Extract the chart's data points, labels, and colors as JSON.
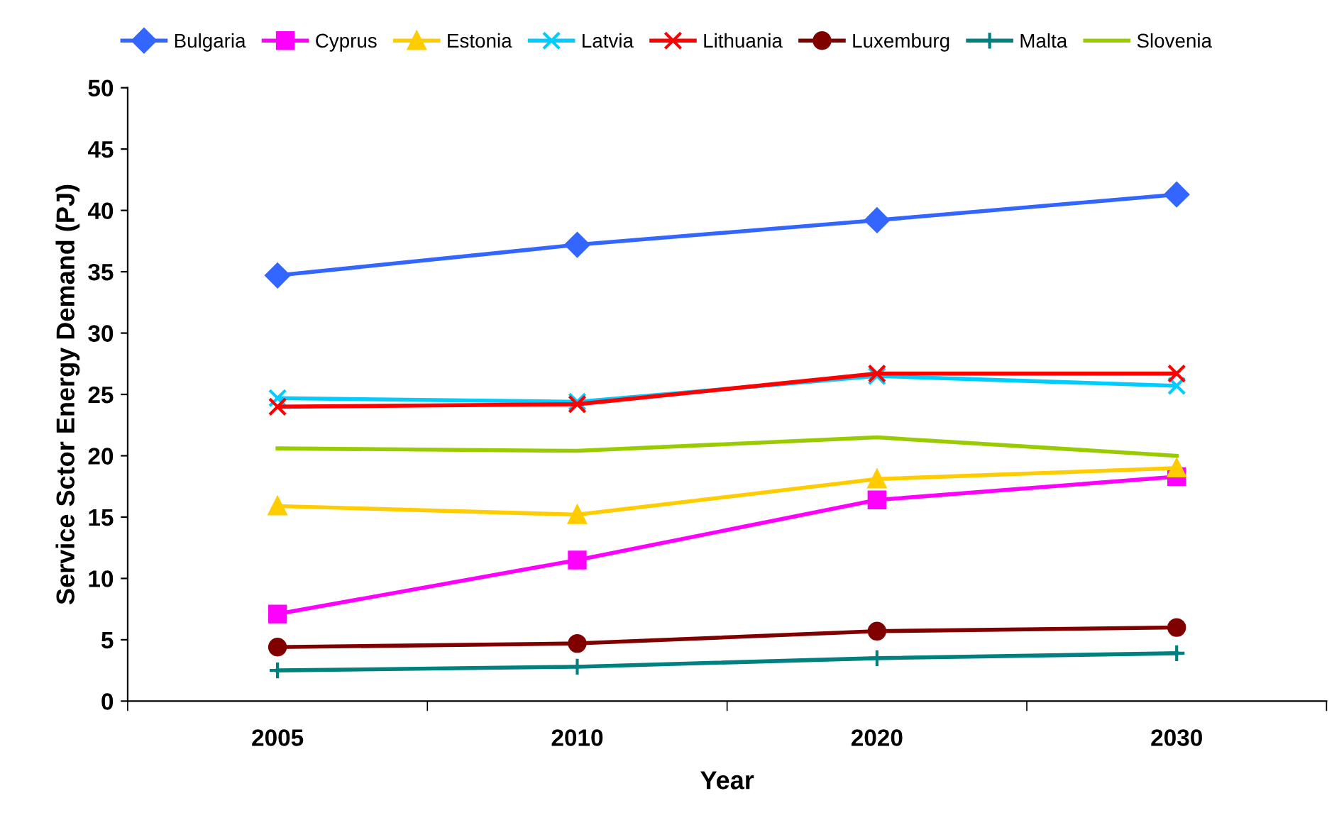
{
  "chart_data": {
    "type": "line",
    "xlabel": "Year",
    "ylabel": "Service Sctor Energy Demand (PJ)",
    "categories": [
      "2005",
      "2010",
      "2020",
      "2030"
    ],
    "ylim": [
      0,
      50
    ],
    "yticks": [
      0,
      5,
      10,
      15,
      20,
      25,
      30,
      35,
      40,
      45,
      50
    ],
    "grid": false,
    "legend": "top",
    "line_style": "solid",
    "series": [
      {
        "name": "Bulgaria",
        "color": "#3366ff",
        "marker": "diamond",
        "values": [
          34.7,
          37.2,
          39.2,
          41.3
        ]
      },
      {
        "name": "Cyprus",
        "color": "#ff00ff",
        "marker": "square",
        "values": [
          7.1,
          11.5,
          16.4,
          18.3
        ]
      },
      {
        "name": "Estonia",
        "color": "#ffcc00",
        "marker": "triangle",
        "values": [
          15.9,
          15.2,
          18.1,
          19.0
        ]
      },
      {
        "name": "Latvia",
        "color": "#00ccff",
        "marker": "cross",
        "values": [
          24.7,
          24.4,
          26.5,
          25.7
        ]
      },
      {
        "name": "Lithuania",
        "color": "#ff0000",
        "marker": "cross",
        "values": [
          24.0,
          24.2,
          26.7,
          26.7
        ]
      },
      {
        "name": "Luxemburg",
        "color": "#800000",
        "marker": "circle",
        "values": [
          4.4,
          4.7,
          5.7,
          6.0
        ]
      },
      {
        "name": "Malta",
        "color": "#008080",
        "marker": "plus",
        "values": [
          2.5,
          2.8,
          3.5,
          3.9
        ]
      },
      {
        "name": "Slovenia",
        "color": "#99cc00",
        "marker": "none",
        "values": [
          20.6,
          20.4,
          21.5,
          20.0
        ]
      }
    ]
  }
}
